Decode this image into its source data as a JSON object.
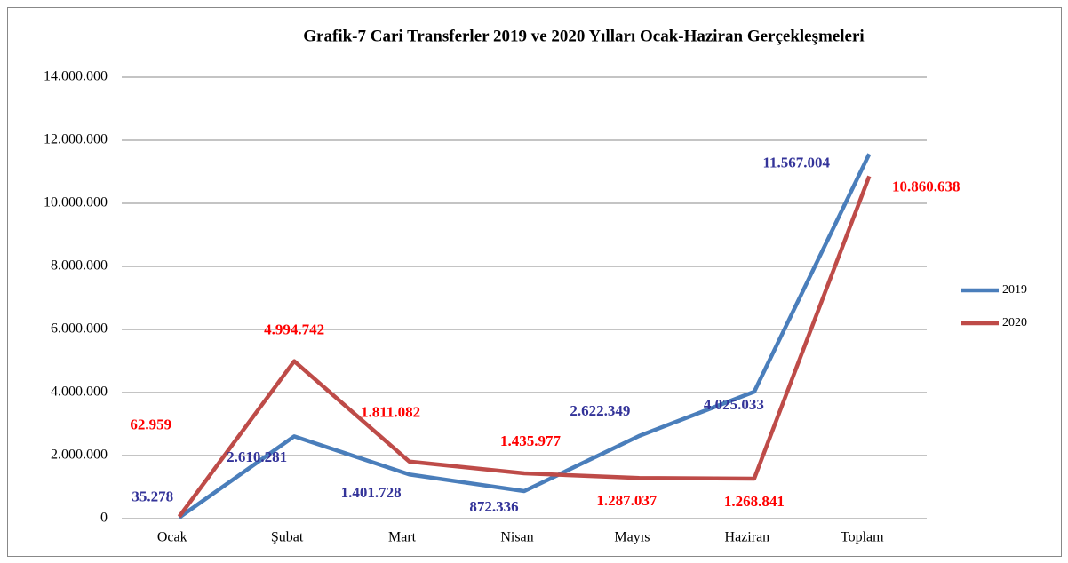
{
  "chart_data": {
    "type": "line",
    "title": "Grafik-7 Cari Transferler 2019 ve 2020 Yılları Ocak-Haziran Gerçekleşmeleri",
    "categories": [
      "Ocak",
      "Şubat",
      "Mart",
      "Nisan",
      "Mayıs",
      "Haziran",
      "Toplam"
    ],
    "series": [
      {
        "name": "2019",
        "color": "#4a7ebb",
        "label_color": "#333399",
        "values": [
          35278,
          2610281,
          1401728,
          872336,
          2622349,
          4025033,
          11567004
        ],
        "value_labels": [
          "35.278",
          "2.610.281",
          "1.401.728",
          "872.336",
          "2.622.349",
          "4.025.033",
          "11.567.004"
        ]
      },
      {
        "name": "2020",
        "color": "#be4b48",
        "label_color": "#ff0000",
        "values": [
          62959,
          4994742,
          1811082,
          1435977,
          1287037,
          1268841,
          10860638
        ],
        "value_labels": [
          "62.959",
          "4.994.742",
          "1.811.082",
          "1.435.977",
          "1.287.037",
          "1.268.841",
          "10.860.638"
        ]
      }
    ],
    "ylim": [
      0,
      14000000
    ],
    "yticks": [
      0,
      {
        "value": 2000000,
        "label": "2.000.000"
      },
      {
        "value": 4000000,
        "label": "4.000.000"
      },
      {
        "value": 6000000,
        "label": "6.000.000"
      },
      {
        "value": 8000000,
        "label": "8.000.000"
      },
      {
        "value": 10000000,
        "label": "10.000.000"
      },
      {
        "value": 12000000,
        "label": "12.000.000"
      },
      {
        "value": 14000000,
        "label": "14.000.000"
      }
    ],
    "grid": true,
    "legend": "right"
  }
}
